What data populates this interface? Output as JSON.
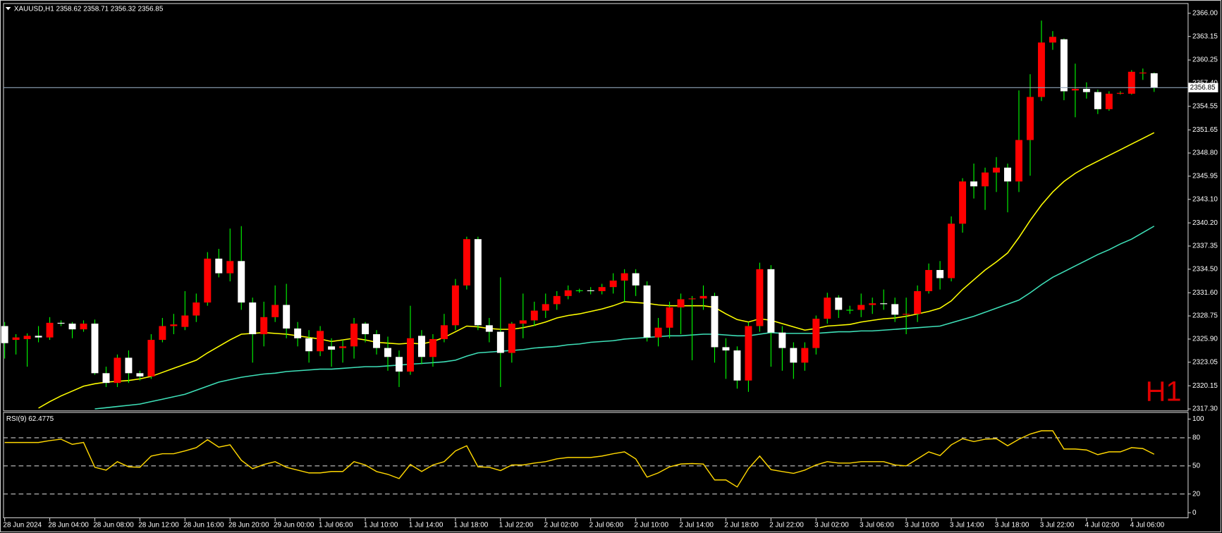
{
  "chart_data": {
    "type": "candlestick",
    "title": "XAUUSD,H1  2358.62 2358.71 2356.32 2356.85",
    "watermark": "H1",
    "categories": [
      "28 Jun 2024",
      null,
      null,
      null,
      "28 Jun 04:00",
      null,
      null,
      null,
      "28 Jun 08:00",
      null,
      null,
      null,
      "28 Jun 12:00",
      null,
      null,
      null,
      "28 Jun 16:00",
      null,
      null,
      null,
      "28 Jun 20:00",
      null,
      null,
      null,
      "29 Jun 00:00",
      null,
      null,
      null,
      "1 Jul 06:00",
      null,
      null,
      null,
      "1 Jul 10:00",
      null,
      null,
      null,
      "1 Jul 14:00",
      null,
      null,
      null,
      "1 Jul 18:00",
      null,
      null,
      null,
      "1 Jul 22:00",
      null,
      null,
      null,
      "2 Jul 02:00",
      null,
      null,
      null,
      "2 Jul 06:00",
      null,
      null,
      null,
      "2 Jul 10:00",
      null,
      null,
      null,
      "2 Jul 14:00",
      null,
      null,
      null,
      "2 Jul 18:00",
      null,
      null,
      null,
      "2 Jul 22:00",
      null,
      null,
      null,
      "3 Jul 02:00",
      null,
      null,
      null,
      "3 Jul 06:00",
      null,
      null,
      null,
      "3 Jul 10:00",
      null,
      null,
      null,
      "3 Jul 14:00",
      null,
      null,
      null,
      "3 Jul 18:00",
      null,
      null,
      null,
      "3 Jul 22:00",
      null,
      null,
      null,
      "4 Jul 02:00",
      null,
      null,
      null,
      "4 Jul 06:00",
      null,
      null
    ],
    "open": [
      2327.5,
      2325.8,
      2325.9,
      2326.3,
      2326.1,
      2327.9,
      2327.8,
      2327.1,
      2327.8,
      2321.7,
      2320.5,
      2323.6,
      2321.7,
      2321.3,
      2325.8,
      2327.5,
      2327.4,
      2328.8,
      2330.4,
      2335.8,
      2334,
      2335.5,
      2330.4,
      2326.5,
      2328.6,
      2330.1,
      2327.2,
      2326,
      2324.4,
      2325,
      2324.8,
      2325,
      2327.8,
      2326.5,
      2324.8,
      2323.7,
      2321.9,
      2326.3,
      2323.7,
      2325.9,
      2327.6,
      2332.5,
      2338.2,
      2327.6,
      2326.8,
      2324.2,
      2327.8,
      2328.2,
      2329.4,
      2330.2,
      2331.2,
      2331.9,
      2331.9,
      2331.8,
      2332.3,
      2333.1,
      2334,
      2332.5,
      2326.1,
      2327.3,
      2329.8,
      2330.8,
      2330.9,
      2331.2,
      2324.9,
      2324.5,
      2320.8,
      2327.5,
      2334.5,
      2326.7,
      2324.8,
      2323,
      2324.8,
      2328.4,
      2331,
      2329.5,
      2329.5,
      2330.1,
      2330.3,
      2330.2,
      2328.9,
      2329,
      2331.8,
      2334.4,
      2333.4,
      2340.1,
      2345.3,
      2344.7,
      2346.4,
      2347,
      2345.3,
      2350.4,
      2355.7,
      2362.4,
      2362.8,
      2356.5,
      2356.7,
      2356.3,
      2354.2,
      2356.1,
      2356.1,
      2358.6,
      2358.62
    ],
    "high": [
      2328,
      2326.5,
      2326.6,
      2327.5,
      2328.6,
      2328.2,
      2328,
      2328.2,
      2328.3,
      2322.5,
      2324,
      2324.5,
      2322,
      2326.5,
      2328.5,
      2329,
      2331.8,
      2331.5,
      2336.6,
      2337,
      2339.5,
      2339.8,
      2331,
      2330.5,
      2332.5,
      2332.7,
      2328,
      2327,
      2327.5,
      2326,
      2325.8,
      2328.5,
      2328,
      2327,
      2326.2,
      2324.5,
      2330,
      2327,
      2326.5,
      2329,
      2333.3,
      2338.5,
      2338.5,
      2328.5,
      2333.5,
      2328,
      2331.5,
      2330.5,
      2331.5,
      2331.8,
      2332.5,
      2332.1,
      2332.3,
      2332.7,
      2334,
      2334.5,
      2334.5,
      2333,
      2328.5,
      2330.5,
      2331.5,
      2331.2,
      2332.5,
      2331.6,
      2326,
      2325,
      2328,
      2335.3,
      2335,
      2327.5,
      2325.5,
      2325.5,
      2328.8,
      2331.6,
      2331.3,
      2330,
      2331.5,
      2331,
      2332,
      2331,
      2331,
      2332.5,
      2335.2,
      2335.5,
      2341,
      2345.7,
      2347.5,
      2347,
      2348.3,
      2347.5,
      2356.5,
      2358.5,
      2365.1,
      2363.8,
      2362.9,
      2359.8,
      2357.5,
      2356.6,
      2356.4,
      2356.4,
      2359,
      2359.2,
      2358.71
    ],
    "low": [
      2323.5,
      2324,
      2322.5,
      2325.5,
      2325.8,
      2327.5,
      2326,
      2326.8,
      2321.5,
      2320,
      2320,
      2320.5,
      2320.8,
      2321,
      2325.5,
      2326.5,
      2327,
      2328,
      2330,
      2333.5,
      2333,
      2329.5,
      2323,
      2325,
      2328,
      2326,
      2325,
      2323,
      2323.8,
      2322.5,
      2323,
      2323.5,
      2325.5,
      2324,
      2322,
      2320,
      2321.5,
      2322.8,
      2322.5,
      2325.5,
      2327,
      2332,
      2327,
      2325.5,
      2320,
      2323,
      2326,
      2327.5,
      2328.5,
      2329.5,
      2330.8,
      2331.6,
      2331.4,
      2331.4,
      2331.5,
      2330.5,
      2331.2,
      2325.6,
      2325,
      2326,
      2326.5,
      2323.3,
      2329.5,
      2323,
      2321,
      2319.8,
      2319.4,
      2326.8,
      2322.5,
      2322,
      2321,
      2322,
      2324,
      2327.8,
      2328.5,
      2329,
      2328.6,
      2329,
      2329.5,
      2328,
      2326.5,
      2328,
      2331.5,
      2332,
      2333,
      2339,
      2343.2,
      2341.8,
      2344,
      2341.5,
      2344,
      2346,
      2355.2,
      2361.5,
      2355.3,
      2353.2,
      2355.5,
      2353.6,
      2354,
      2356,
      2356,
      2357.8,
      2356.32
    ],
    "close": [
      2325.4,
      2326.1,
      2326.3,
      2326.1,
      2327.9,
      2327.8,
      2327.1,
      2327.8,
      2321.7,
      2320.5,
      2323.6,
      2321.7,
      2321.3,
      2325.8,
      2327.5,
      2327.7,
      2328.8,
      2330.4,
      2335.8,
      2334,
      2335.5,
      2330.4,
      2326.5,
      2328.6,
      2330.1,
      2327.2,
      2326,
      2324.4,
      2326.9,
      2324.6,
      2325,
      2327.8,
      2326.5,
      2324.8,
      2323.7,
      2321.9,
      2326,
      2323.7,
      2325.9,
      2327.6,
      2332.5,
      2338.2,
      2327.6,
      2326.8,
      2324.2,
      2327.8,
      2328.2,
      2329.4,
      2330.2,
      2331.2,
      2331.9,
      2331.9,
      2331.8,
      2332.3,
      2333.1,
      2334,
      2332.5,
      2326.1,
      2327.3,
      2329.8,
      2330.8,
      2330.9,
      2331.2,
      2324.9,
      2324.5,
      2320.8,
      2327.5,
      2334.5,
      2326.7,
      2324.8,
      2323,
      2324.8,
      2328.4,
      2331,
      2329.5,
      2329.5,
      2330.1,
      2330.3,
      2330.2,
      2328.9,
      2329,
      2331.8,
      2334.4,
      2333.4,
      2340.1,
      2345.3,
      2344.7,
      2346.4,
      2347,
      2345.3,
      2350.4,
      2355.7,
      2362.4,
      2363.1,
      2356.4,
      2356.7,
      2356.3,
      2354.2,
      2356.1,
      2356.2,
      2358.8,
      2358.7,
      2356.85
    ],
    "up_color": "#ff0000",
    "down_color": "#ffffff",
    "wick_color": "#00ff00",
    "overlays": [
      {
        "color": "#ffff00",
        "values": [
          null,
          null,
          null,
          2317.4,
          2318.2,
          2318.9,
          2319.5,
          2320.1,
          2320.4,
          2320.6,
          2320.7,
          2320.8,
          2321.0,
          2321.3,
          2321.8,
          2322.3,
          2322.8,
          2323.3,
          2324.2,
          2325.0,
          2325.8,
          2326.5,
          2326.6,
          2326.7,
          2326.6,
          2326.5,
          2326.3,
          2326.1,
          2325.9,
          2325.6,
          2325.8,
          2326.0,
          2325.8,
          2325.5,
          2325.4,
          2325.3,
          2325.4,
          2325.3,
          2325.6,
          2326.1,
          2326.8,
          2327.5,
          2327.4,
          2327.2,
          2327.1,
          2327.1,
          2327.3,
          2327.6,
          2328.0,
          2328.5,
          2328.8,
          2329.0,
          2329.3,
          2329.6,
          2330.0,
          2330.5,
          2330.4,
          2330.3,
          2330.1,
          2330.0,
          2330.0,
          2330.0,
          2330.0,
          2329.8,
          2329.0,
          2328.3,
          2328.0,
          2328.4,
          2328.2,
          2327.8,
          2327.4,
          2327.0,
          2327.2,
          2327.5,
          2327.6,
          2327.7,
          2328.0,
          2328.2,
          2328.4,
          2328.5,
          2328.7,
          2329.0,
          2329.3,
          2329.7,
          2330.6,
          2332.0,
          2333.2,
          2334.4,
          2335.4,
          2336.5,
          2338.4,
          2340.5,
          2342.4,
          2344.0,
          2345.3,
          2346.3,
          2347.1,
          2347.8,
          2348.5,
          2349.2,
          2349.9,
          2350.6,
          2351.3
        ]
      },
      {
        "color": "#3ee0b8",
        "values": [
          null,
          null,
          null,
          null,
          null,
          null,
          null,
          null,
          2317.3,
          2317.45,
          2317.6,
          2317.75,
          2317.9,
          2318.2,
          2318.5,
          2318.8,
          2319.1,
          2319.6,
          2320.1,
          2320.6,
          2320.9,
          2321.2,
          2321.4,
          2321.6,
          2321.7,
          2321.9,
          2322.0,
          2322.1,
          2322.2,
          2322.2,
          2322.3,
          2322.4,
          2322.5,
          2322.5,
          2322.6,
          2322.7,
          2322.8,
          2322.9,
          2323.0,
          2323.1,
          2323.3,
          2323.8,
          2324.2,
          2324.3,
          2324.4,
          2324.5,
          2324.6,
          2324.8,
          2324.9,
          2325.0,
          2325.2,
          2325.3,
          2325.5,
          2325.6,
          2325.7,
          2325.9,
          2326.0,
          2326.1,
          2326.2,
          2326.3,
          2326.3,
          2326.4,
          2326.5,
          2326.5,
          2326.4,
          2326.3,
          2326.3,
          2326.5,
          2326.7,
          2326.6,
          2326.6,
          2326.6,
          2326.6,
          2326.7,
          2326.8,
          2326.8,
          2326.9,
          2326.9,
          2327.0,
          2327.1,
          2327.2,
          2327.3,
          2327.4,
          2327.5,
          2327.9,
          2328.3,
          2328.7,
          2329.2,
          2329.7,
          2330.2,
          2330.7,
          2331.6,
          2332.6,
          2333.5,
          2334.2,
          2334.9,
          2335.6,
          2336.3,
          2336.9,
          2337.6,
          2338.2,
          2339.0,
          2339.8
        ]
      }
    ],
    "current_price": 2356.85,
    "price_line_color": "#8fa3b8",
    "ylim": [
      2317.11,
      2367.25
    ],
    "yticks": [
      {
        "value": 2366,
        "label": "2366.00"
      },
      2363.15,
      2360.25,
      {
        "value": 2357.4,
        "label": "2357.40"
      },
      2354.55,
      2351.65,
      {
        "value": 2348.8,
        "label": "2348.80"
      },
      2345.95,
      {
        "value": 2343.1,
        "label": "2343.10"
      },
      {
        "value": 2340.2,
        "label": "2340.20"
      },
      2337.35,
      {
        "value": 2334.5,
        "label": "2334.50"
      },
      {
        "value": 2331.6,
        "label": "2331.60"
      },
      2328.75,
      {
        "value": 2325.9,
        "label": "2325.90"
      },
      2323.05,
      2320.15,
      {
        "value": 2317.3,
        "label": "2317.30"
      }
    ],
    "rsi": {
      "title": "RSI(9) 62.4775",
      "color": "#ffd700",
      "ylim": [
        0,
        100
      ],
      "yticks": [
        100,
        80,
        50,
        20,
        0
      ],
      "values": [
        75,
        75,
        75,
        75,
        77,
        78.5,
        73,
        75,
        48.5,
        45.5,
        54.5,
        49,
        48.5,
        60.5,
        63,
        63,
        66,
        69.5,
        78,
        70,
        72.5,
        56,
        47,
        51.5,
        54.5,
        48.5,
        45.5,
        42.5,
        42.5,
        44,
        44,
        54.5,
        51,
        44,
        41,
        36.5,
        51.5,
        44,
        51,
        54.5,
        66,
        71.5,
        49,
        48.5,
        45,
        51,
        51,
        53,
        54.5,
        57.5,
        59,
        59,
        59,
        60.5,
        63,
        65,
        57.5,
        38,
        42.5,
        49,
        52,
        52.5,
        52,
        35,
        35,
        27.5,
        47,
        60.5,
        46,
        44,
        42,
        45.5,
        51,
        54.5,
        53,
        53,
        54.5,
        54.5,
        54.5,
        51,
        50,
        57.5,
        65,
        61,
        72.5,
        79,
        76,
        78.5,
        79,
        71.5,
        78.5,
        84,
        87.5,
        87.5,
        68,
        68,
        67,
        62,
        65,
        65,
        69.5,
        68.5,
        62.4775
      ]
    }
  }
}
